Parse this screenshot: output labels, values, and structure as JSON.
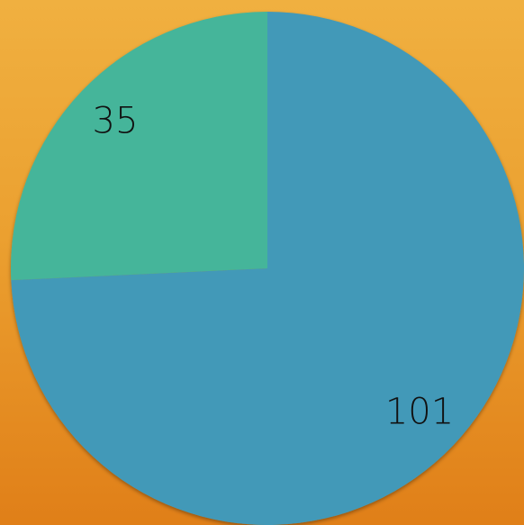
{
  "chart_data": {
    "type": "pie",
    "values": [
      101,
      35
    ],
    "colors": [
      "#4399b8",
      "#45b59a"
    ]
  }
}
